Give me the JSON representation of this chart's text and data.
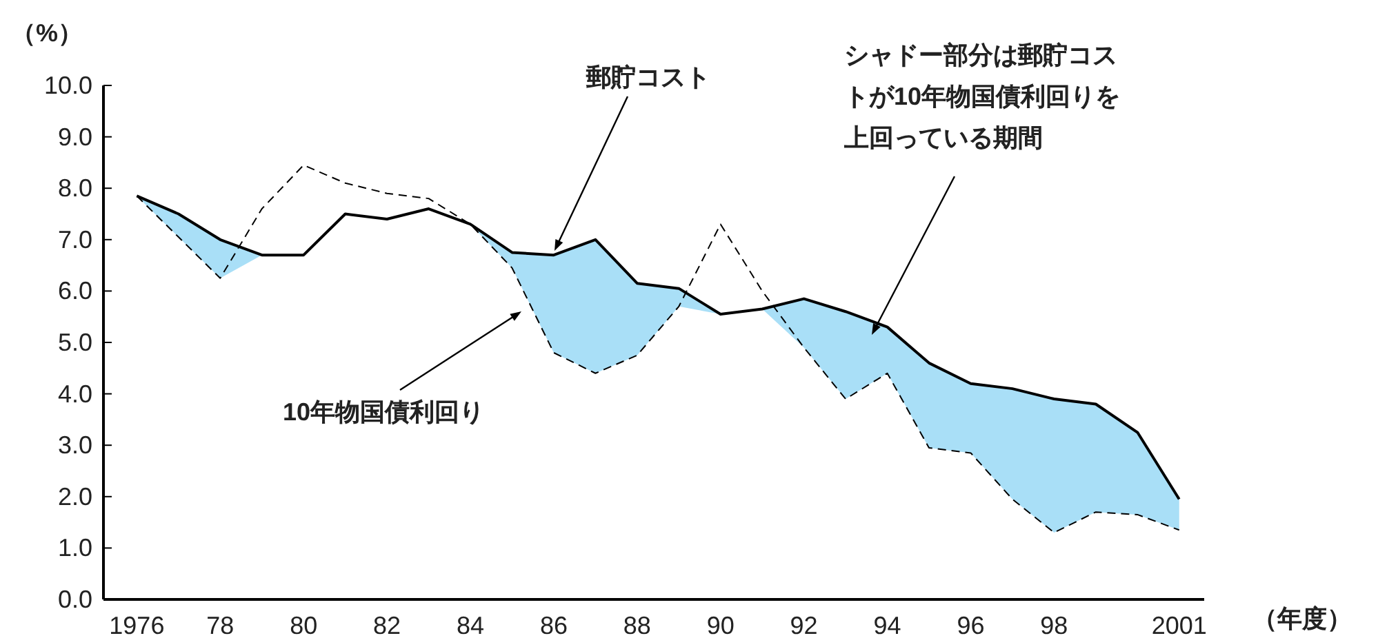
{
  "chart_data": {
    "type": "line",
    "ylabel": "（%）",
    "xlabel": "（年度）",
    "x": [
      1976,
      1977,
      1978,
      1979,
      1980,
      1981,
      1982,
      1983,
      1984,
      1985,
      1986,
      1987,
      1988,
      1989,
      1990,
      1991,
      1992,
      1993,
      1994,
      1995,
      1996,
      1997,
      1998,
      1999,
      2000,
      2001
    ],
    "series": [
      {
        "color": "#000000",
        "line_style": "solid",
        "lower": [
          7.85,
          7.05,
          6.25,
          6.7,
          6.7,
          7.5,
          7.4,
          7.6,
          7.3,
          6.45,
          4.8,
          4.4,
          4.75,
          5.7,
          5.55,
          5.65,
          4.9,
          3.9,
          4.4,
          2.95,
          2.85,
          1.95,
          1.3,
          1.7,
          1.65,
          1.35
        ],
        "upper": [
          7.85,
          7.5,
          7.0,
          6.7,
          6.7,
          7.5,
          7.4,
          7.6,
          7.3,
          6.75,
          6.7,
          7.0,
          6.15,
          6.05,
          5.55,
          5.65,
          5.85,
          5.6,
          5.3,
          4.6,
          4.2,
          4.1,
          3.9,
          3.8,
          3.25,
          1.95
        ],
        "values": [
          7.85,
          7.5,
          7.0,
          6.7,
          6.7,
          7.5,
          7.4,
          7.6,
          7.3,
          6.75,
          6.7,
          7.0,
          6.15,
          6.05,
          5.55,
          5.65,
          5.85,
          5.6,
          5.3,
          4.6,
          4.2,
          4.1,
          3.9,
          3.8,
          3.25,
          1.95
        ]
      },
      {
        "color": "#000000",
        "line_style": "dashed",
        "values": [
          7.85,
          7.05,
          6.25,
          7.6,
          8.45,
          8.1,
          7.9,
          7.8,
          7.3,
          6.45,
          4.8,
          4.4,
          4.75,
          5.7,
          7.3,
          6.0,
          4.9,
          3.9,
          4.4,
          2.95,
          2.85,
          1.95,
          1.3,
          1.7,
          1.65,
          1.35
        ]
      }
    ],
    "xlim": [
      1975.2,
      2001.6
    ],
    "xticks": [
      {
        "value": 1976,
        "label": "1976"
      },
      {
        "value": 1978,
        "label": "78"
      },
      {
        "value": 1980,
        "label": "80"
      },
      {
        "value": 1982,
        "label": "82"
      },
      {
        "value": 1984,
        "label": "84"
      },
      {
        "value": 1986,
        "label": "86"
      },
      {
        "value": 1988,
        "label": "88"
      },
      {
        "value": 1990,
        "label": "90"
      },
      {
        "value": 1992,
        "label": "92"
      },
      {
        "value": 1994,
        "label": "94"
      },
      {
        "value": 1996,
        "label": "96"
      },
      {
        "value": 1998,
        "label": "98"
      },
      {
        "value": 2001,
        "label": "2001"
      }
    ],
    "ylim": [
      0,
      10
    ],
    "yticks": [
      {
        "value": 0,
        "label": "0.0"
      },
      {
        "value": 1,
        "label": "1.0"
      },
      {
        "value": 2,
        "label": "2.0"
      },
      {
        "value": 3,
        "label": "3.0"
      },
      {
        "value": 4,
        "label": "4.0"
      },
      {
        "value": 5,
        "label": "5.0"
      },
      {
        "value": 6,
        "label": "6.0"
      },
      {
        "value": 7,
        "label": "7.0"
      },
      {
        "value": 8,
        "label": "8.0"
      },
      {
        "value": 9,
        "label": "9.0"
      },
      {
        "value": 10,
        "label": "10.0"
      }
    ],
    "grid": false,
    "marker": "none",
    "annotations": [
      "郵貯コスト",
      "10年物国債利回り",
      "シャドー部分は郵貯コストが10年物国債利回りを上回っている期間"
    ]
  }
}
